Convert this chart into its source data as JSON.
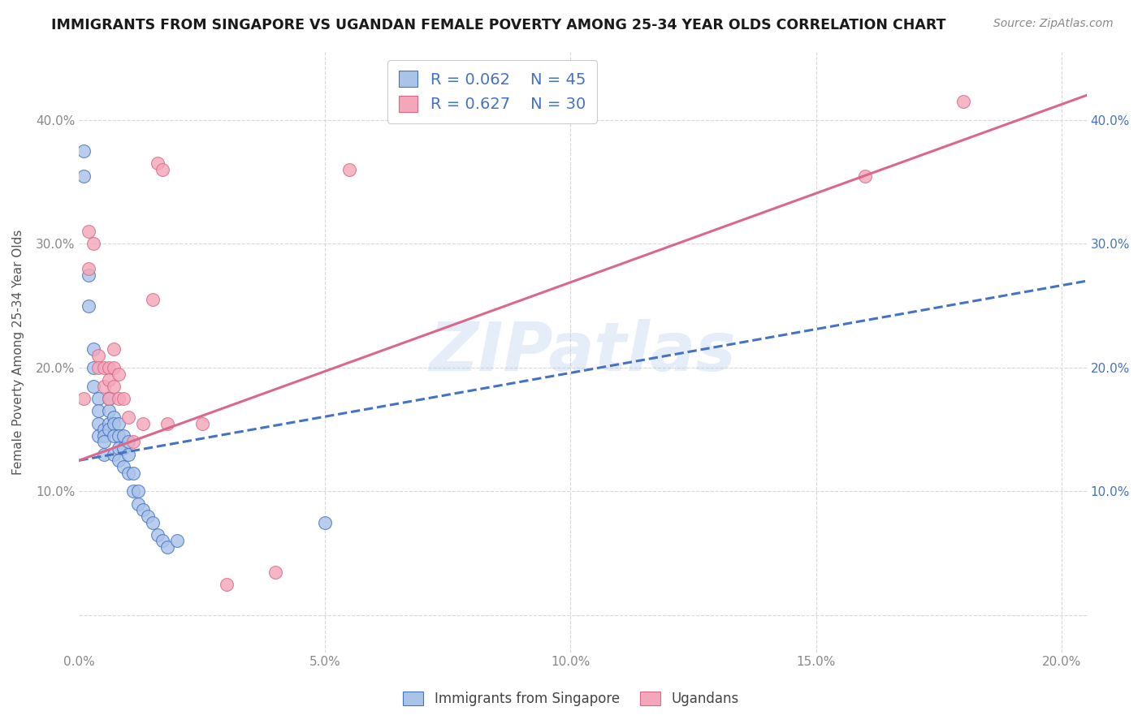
{
  "title": "IMMIGRANTS FROM SINGAPORE VS UGANDAN FEMALE POVERTY AMONG 25-34 YEAR OLDS CORRELATION CHART",
  "source": "Source: ZipAtlas.com",
  "ylabel": "Female Poverty Among 25-34 Year Olds",
  "watermark": "ZIPatlas",
  "bg_color": "#ffffff",
  "grid_color": "#d8d8d8",
  "blue_R": 0.062,
  "blue_N": 45,
  "pink_R": 0.627,
  "pink_N": 30,
  "blue_color": "#aac4e8",
  "blue_line_color": "#4472c4",
  "pink_color": "#f4a7b9",
  "pink_line_color": "#d9688a",
  "xlim": [
    0.0,
    0.205
  ],
  "ylim": [
    -0.03,
    0.455
  ],
  "blue_scatter_x": [
    0.001,
    0.001,
    0.002,
    0.002,
    0.003,
    0.003,
    0.003,
    0.004,
    0.004,
    0.004,
    0.004,
    0.005,
    0.005,
    0.005,
    0.005,
    0.006,
    0.006,
    0.006,
    0.006,
    0.007,
    0.007,
    0.007,
    0.007,
    0.008,
    0.008,
    0.008,
    0.008,
    0.009,
    0.009,
    0.009,
    0.01,
    0.01,
    0.01,
    0.011,
    0.011,
    0.012,
    0.012,
    0.013,
    0.014,
    0.015,
    0.016,
    0.017,
    0.018,
    0.02,
    0.05
  ],
  "blue_scatter_y": [
    0.375,
    0.355,
    0.275,
    0.25,
    0.215,
    0.2,
    0.185,
    0.175,
    0.165,
    0.155,
    0.145,
    0.15,
    0.145,
    0.14,
    0.13,
    0.175,
    0.165,
    0.155,
    0.15,
    0.16,
    0.155,
    0.145,
    0.13,
    0.155,
    0.145,
    0.135,
    0.125,
    0.145,
    0.135,
    0.12,
    0.14,
    0.13,
    0.115,
    0.115,
    0.1,
    0.1,
    0.09,
    0.085,
    0.08,
    0.075,
    0.065,
    0.06,
    0.055,
    0.06,
    0.075
  ],
  "pink_scatter_x": [
    0.001,
    0.002,
    0.002,
    0.003,
    0.004,
    0.004,
    0.005,
    0.005,
    0.006,
    0.006,
    0.006,
    0.007,
    0.007,
    0.007,
    0.008,
    0.008,
    0.009,
    0.01,
    0.011,
    0.013,
    0.015,
    0.016,
    0.017,
    0.018,
    0.025,
    0.03,
    0.04,
    0.055,
    0.16,
    0.18
  ],
  "pink_scatter_y": [
    0.175,
    0.31,
    0.28,
    0.3,
    0.21,
    0.2,
    0.2,
    0.185,
    0.2,
    0.19,
    0.175,
    0.215,
    0.2,
    0.185,
    0.195,
    0.175,
    0.175,
    0.16,
    0.14,
    0.155,
    0.255,
    0.365,
    0.36,
    0.155,
    0.155,
    0.025,
    0.035,
    0.36,
    0.355,
    0.415
  ],
  "blue_line_x": [
    0.0,
    0.205
  ],
  "blue_line_y": [
    0.125,
    0.27
  ],
  "pink_line_x": [
    0.0,
    0.205
  ],
  "pink_line_y": [
    0.125,
    0.42
  ],
  "xtick_labels": [
    "0.0%",
    "5.0%",
    "10.0%",
    "15.0%",
    "20.0%"
  ],
  "xtick_positions": [
    0.0,
    0.05,
    0.1,
    0.15,
    0.2
  ],
  "ytick_labels_left": [
    "",
    "10.0%",
    "20.0%",
    "30.0%",
    "40.0%"
  ],
  "ytick_positions_left": [
    0.0,
    0.1,
    0.2,
    0.3,
    0.4
  ],
  "ytick_labels_right": [
    "10.0%",
    "20.0%",
    "30.0%",
    "40.0%"
  ],
  "ytick_positions_right": [
    0.1,
    0.2,
    0.3,
    0.4
  ]
}
